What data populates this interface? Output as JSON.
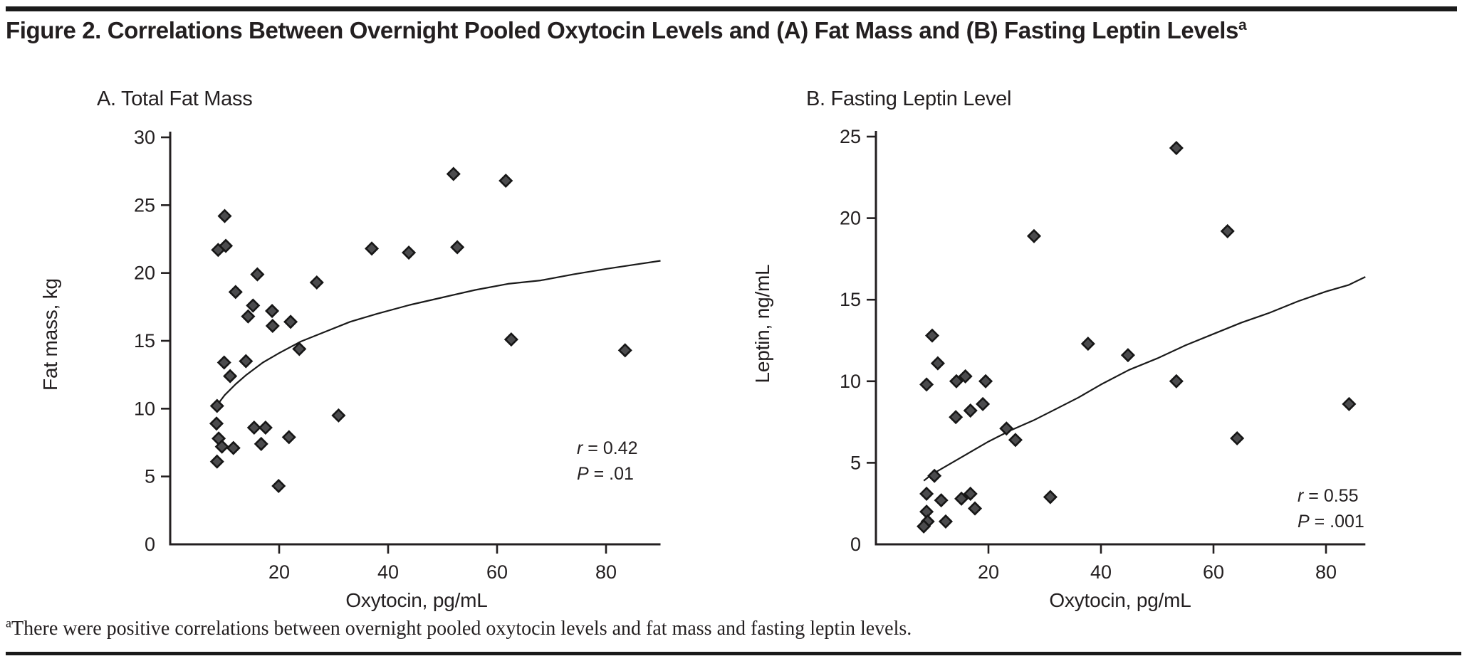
{
  "header": {
    "title": "Figure 2. Correlations Between Overnight Pooled Oxytocin Levels and (A) Fat Mass and (B) Fasting Leptin Levels",
    "title_superscript": "a"
  },
  "footer": {
    "superscript": "a",
    "text": "There were positive correlations between overnight pooled oxytocin levels and fat mass and fasting leptin levels."
  },
  "colors": {
    "text": "#231f20",
    "axis": "#231f20",
    "marker_fill": "#4b4b4d",
    "marker_stroke": "#161616",
    "trend_line": "#1a1a1a",
    "rule": "#1a1a1a"
  },
  "chart_data": [
    {
      "type": "scatter",
      "panel_label": "A. Total Fat Mass",
      "xlabel": "Oxytocin, pg/mL",
      "ylabel": "Fat mass, kg",
      "xlim": [
        0,
        90
      ],
      "ylim": [
        0,
        30
      ],
      "xticks": [
        20,
        40,
        60,
        80
      ],
      "yticks": [
        0,
        5,
        10,
        15,
        20,
        25,
        30
      ],
      "grid": false,
      "annotation": {
        "line1": "r = 0.42",
        "line2": "P = .01"
      },
      "marker": "diamond",
      "points": [
        [
          8.8,
          21.7
        ],
        [
          10.2,
          22.0
        ],
        [
          10.0,
          24.2
        ],
        [
          12.0,
          18.6
        ],
        [
          16.0,
          19.9
        ],
        [
          26.9,
          19.3
        ],
        [
          37.0,
          21.8
        ],
        [
          43.8,
          21.5
        ],
        [
          52.0,
          27.3
        ],
        [
          52.7,
          21.9
        ],
        [
          61.6,
          26.8
        ],
        [
          15.2,
          17.6
        ],
        [
          14.3,
          16.8
        ],
        [
          18.7,
          17.2
        ],
        [
          18.8,
          16.1
        ],
        [
          22.1,
          16.4
        ],
        [
          23.7,
          14.4
        ],
        [
          9.9,
          13.4
        ],
        [
          13.9,
          13.5
        ],
        [
          11.0,
          12.4
        ],
        [
          8.6,
          10.2
        ],
        [
          8.5,
          8.9
        ],
        [
          8.9,
          7.8
        ],
        [
          9.5,
          7.2
        ],
        [
          8.6,
          6.1
        ],
        [
          11.6,
          7.1
        ],
        [
          15.4,
          8.6
        ],
        [
          17.5,
          8.6
        ],
        [
          16.7,
          7.4
        ],
        [
          21.8,
          7.9
        ],
        [
          19.9,
          4.3
        ],
        [
          30.9,
          9.5
        ],
        [
          62.6,
          15.1
        ],
        [
          83.5,
          14.3
        ]
      ],
      "trend": [
        [
          8.5,
          10.2
        ],
        [
          10,
          11.0
        ],
        [
          12,
          11.8
        ],
        [
          14,
          12.5
        ],
        [
          17,
          13.4
        ],
        [
          20,
          14.1
        ],
        [
          24,
          14.95
        ],
        [
          28,
          15.6
        ],
        [
          33,
          16.4
        ],
        [
          38,
          17.0
        ],
        [
          44,
          17.65
        ],
        [
          50,
          18.2
        ],
        [
          56,
          18.75
        ],
        [
          62,
          19.2
        ],
        [
          68,
          19.45
        ],
        [
          74,
          19.9
        ],
        [
          80,
          20.3
        ],
        [
          85,
          20.6
        ],
        [
          90,
          20.9
        ]
      ]
    },
    {
      "type": "scatter",
      "panel_label": "B. Fasting Leptin Level",
      "xlabel": "Oxytocin, pg/mL",
      "ylabel": "Leptin, ng/mL",
      "xlim": [
        0,
        87
      ],
      "ylim": [
        0,
        25
      ],
      "xticks": [
        20,
        40,
        60,
        80
      ],
      "yticks": [
        0,
        5,
        10,
        15,
        20,
        25
      ],
      "grid": false,
      "annotation": {
        "line1": "r = 0.55",
        "line2": "P = .001"
      },
      "marker": "diamond",
      "points": [
        [
          53.4,
          24.3
        ],
        [
          28.1,
          18.9
        ],
        [
          62.5,
          19.2
        ],
        [
          10.0,
          12.8
        ],
        [
          11.0,
          11.1
        ],
        [
          9.0,
          9.8
        ],
        [
          14.3,
          10.0
        ],
        [
          15.9,
          10.3
        ],
        [
          19.5,
          10.0
        ],
        [
          37.7,
          12.3
        ],
        [
          44.8,
          11.6
        ],
        [
          53.4,
          10.0
        ],
        [
          19.0,
          8.6
        ],
        [
          16.8,
          8.2
        ],
        [
          14.2,
          7.8
        ],
        [
          23.2,
          7.1
        ],
        [
          24.8,
          6.4
        ],
        [
          84.1,
          8.6
        ],
        [
          64.2,
          6.5
        ],
        [
          10.4,
          4.2
        ],
        [
          9.0,
          3.1
        ],
        [
          11.6,
          2.7
        ],
        [
          15.2,
          2.8
        ],
        [
          16.8,
          3.1
        ],
        [
          17.6,
          2.2
        ],
        [
          9.0,
          2.0
        ],
        [
          9.2,
          1.4
        ],
        [
          12.4,
          1.4
        ],
        [
          8.5,
          1.1
        ],
        [
          31.0,
          2.9
        ]
      ],
      "trend": [
        [
          8.5,
          3.9
        ],
        [
          10,
          4.3
        ],
        [
          13,
          4.9
        ],
        [
          16,
          5.5
        ],
        [
          20,
          6.3
        ],
        [
          24,
          7.0
        ],
        [
          28,
          7.6
        ],
        [
          32,
          8.3
        ],
        [
          36,
          9.0
        ],
        [
          40,
          9.8
        ],
        [
          45,
          10.7
        ],
        [
          50,
          11.4
        ],
        [
          55,
          12.2
        ],
        [
          60,
          12.9
        ],
        [
          65,
          13.6
        ],
        [
          70,
          14.2
        ],
        [
          75,
          14.9
        ],
        [
          80,
          15.5
        ],
        [
          84,
          15.9
        ],
        [
          87,
          16.4
        ]
      ]
    }
  ]
}
